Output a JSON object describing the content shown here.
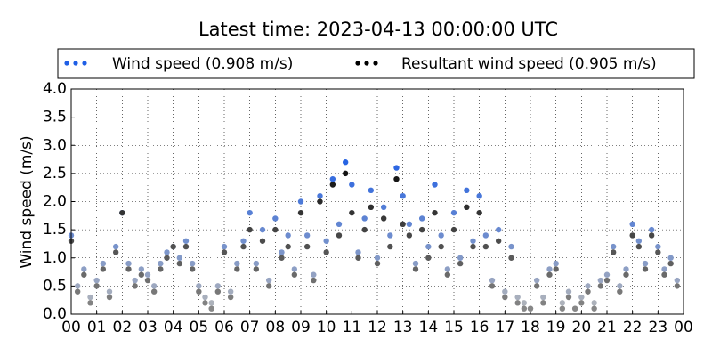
{
  "chart_data": {
    "type": "scatter",
    "title": "Latest time: 2023-04-13 00:00:00 UTC",
    "y_label": "Wind speed (m/s)",
    "x": [
      0,
      0.25,
      0.5,
      0.75,
      1,
      1.25,
      1.5,
      1.75,
      2,
      2.25,
      2.5,
      2.75,
      3,
      3.25,
      3.5,
      3.75,
      4,
      4.25,
      4.5,
      4.75,
      5,
      5.25,
      5.5,
      5.75,
      6,
      6.25,
      6.5,
      6.75,
      7,
      7.25,
      7.5,
      7.75,
      8,
      8.25,
      8.5,
      8.75,
      9,
      9.25,
      9.5,
      9.75,
      10,
      10.25,
      10.5,
      10.75,
      11,
      11.25,
      11.5,
      11.75,
      12,
      12.25,
      12.5,
      12.75,
      13,
      13.25,
      13.5,
      13.75,
      14,
      14.25,
      14.5,
      14.75,
      15,
      15.25,
      15.5,
      15.75,
      16,
      16.25,
      16.5,
      16.75,
      17,
      17.25,
      17.5,
      17.75,
      18,
      18.25,
      18.5,
      18.75,
      19,
      19.25,
      19.5,
      19.75,
      20,
      20.25,
      20.5,
      20.75,
      21,
      21.25,
      21.5,
      21.75,
      22,
      22.25,
      22.5,
      22.75,
      23,
      23.25,
      23.5,
      23.75
    ],
    "series": [
      {
        "name": "Wind speed (0.908 m/s)",
        "color": "#1f5fe6",
        "color_low": "#b8b8b8",
        "values": [
          1.4,
          0.5,
          0.8,
          0.3,
          0.6,
          0.9,
          0.4,
          1.2,
          1.8,
          0.9,
          0.6,
          0.8,
          0.7,
          0.5,
          0.9,
          1.1,
          1.2,
          1.0,
          1.3,
          0.9,
          0.5,
          0.3,
          0.2,
          0.5,
          1.2,
          0.4,
          0.9,
          1.3,
          1.8,
          0.9,
          1.5,
          0.6,
          1.7,
          1.1,
          1.4,
          0.8,
          2.0,
          1.4,
          0.7,
          2.1,
          1.3,
          2.4,
          1.6,
          2.7,
          2.3,
          1.1,
          1.7,
          2.2,
          1.0,
          1.9,
          1.4,
          2.6,
          2.1,
          1.6,
          0.9,
          1.7,
          1.2,
          2.3,
          1.4,
          0.8,
          1.8,
          1.0,
          2.2,
          1.3,
          2.1,
          1.4,
          0.6,
          1.5,
          0.4,
          1.2,
          0.3,
          0.2,
          0.1,
          0.6,
          0.3,
          0.8,
          0.9,
          0.2,
          0.4,
          0.1,
          0.3,
          0.5,
          0.2,
          0.6,
          0.7,
          1.2,
          0.5,
          0.8,
          1.6,
          1.3,
          0.9,
          1.5,
          1.2,
          0.8,
          1.0,
          0.6
        ]
      },
      {
        "name": "Resultant wind speed (0.905 m/s)",
        "color": "#000000",
        "color_low": "#8c8c8c",
        "values": [
          1.3,
          0.4,
          0.7,
          0.2,
          0.5,
          0.8,
          0.3,
          1.1,
          1.8,
          0.8,
          0.5,
          0.7,
          0.6,
          0.4,
          0.8,
          1.0,
          1.2,
          0.9,
          1.2,
          0.8,
          0.4,
          0.2,
          0.1,
          0.4,
          1.1,
          0.3,
          0.8,
          1.2,
          1.5,
          0.8,
          1.3,
          0.5,
          1.5,
          1.0,
          1.2,
          0.7,
          1.8,
          1.2,
          0.6,
          2.0,
          1.1,
          2.3,
          1.4,
          2.5,
          1.8,
          1.0,
          1.5,
          1.9,
          0.9,
          1.7,
          1.2,
          2.4,
          1.6,
          1.4,
          0.8,
          1.5,
          1.0,
          1.8,
          1.2,
          0.7,
          1.5,
          0.9,
          1.9,
          1.2,
          1.8,
          1.2,
          0.5,
          1.3,
          0.3,
          1.0,
          0.2,
          0.1,
          0.1,
          0.5,
          0.2,
          0.7,
          0.8,
          0.1,
          0.3,
          0.1,
          0.2,
          0.4,
          0.1,
          0.5,
          0.6,
          1.1,
          0.4,
          0.7,
          1.4,
          1.2,
          0.8,
          1.4,
          1.1,
          0.7,
          0.9,
          0.5
        ]
      }
    ],
    "xlim": [
      0,
      24
    ],
    "xticks": [
      {
        "value": 0,
        "label": "00"
      },
      {
        "value": 1,
        "label": "01"
      },
      {
        "value": 2,
        "label": "02"
      },
      {
        "value": 3,
        "label": "03"
      },
      {
        "value": 4,
        "label": "04"
      },
      {
        "value": 5,
        "label": "05"
      },
      {
        "value": 6,
        "label": "06"
      },
      {
        "value": 7,
        "label": "07"
      },
      {
        "value": 8,
        "label": "08"
      },
      {
        "value": 9,
        "label": "09"
      },
      {
        "value": 10,
        "label": "10"
      },
      {
        "value": 11,
        "label": "11"
      },
      {
        "value": 12,
        "label": "12"
      },
      {
        "value": 13,
        "label": "13"
      },
      {
        "value": 14,
        "label": "14"
      },
      {
        "value": 15,
        "label": "15"
      },
      {
        "value": 16,
        "label": "16"
      },
      {
        "value": 17,
        "label": "17"
      },
      {
        "value": 18,
        "label": "18"
      },
      {
        "value": 19,
        "label": "19"
      },
      {
        "value": 20,
        "label": "20"
      },
      {
        "value": 21,
        "label": "21"
      },
      {
        "value": 22,
        "label": "22"
      },
      {
        "value": 23,
        "label": "23"
      },
      {
        "value": 24,
        "label": "00"
      }
    ],
    "ylim": [
      0,
      4
    ],
    "yticks": [
      {
        "value": 0,
        "label": "0.0"
      },
      0.5,
      {
        "value": 1,
        "label": "1.0"
      },
      1.5,
      {
        "value": 2,
        "label": "2.0"
      },
      2.5,
      {
        "value": 3,
        "label": "3.0"
      },
      3.5,
      {
        "value": 4,
        "label": "4.0"
      }
    ],
    "grid": true,
    "legend": "top"
  }
}
